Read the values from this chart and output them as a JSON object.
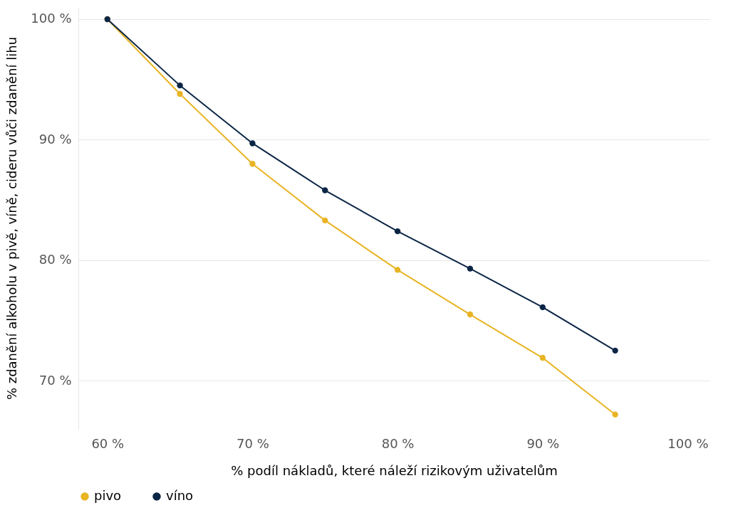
{
  "chart_data": {
    "type": "line",
    "xlabel": "% podíl nákladů, které náleží rizikovým uživatelům",
    "ylabel": "% zdanění alkoholu v pivě, víně, cideru vůči zdanění lihu",
    "x": [
      60,
      65,
      70,
      75,
      80,
      85,
      90,
      95
    ],
    "series": [
      {
        "name": "pivo",
        "color": "#e8b424",
        "values": [
          100,
          93.8,
          88.0,
          83.3,
          79.2,
          75.5,
          71.9,
          67.2
        ]
      },
      {
        "name": "víno",
        "color": "#0b2545",
        "values": [
          100,
          94.5,
          89.7,
          85.8,
          82.4,
          79.3,
          76.1,
          72.5
        ]
      }
    ],
    "xlim": [
      58,
      101.5
    ],
    "ylim": [
      66,
      101
    ],
    "xticks": [
      {
        "value": 60,
        "label": "60 %"
      },
      {
        "value": 70,
        "label": "70 %"
      },
      {
        "value": 80,
        "label": "80 %"
      },
      {
        "value": 90,
        "label": "90 %"
      },
      {
        "value": 100,
        "label": "100 %"
      }
    ],
    "yticks": [
      {
        "value": 70,
        "label": "70 %"
      },
      {
        "value": 80,
        "label": "80 %"
      },
      {
        "value": 90,
        "label": "90 %"
      },
      {
        "value": 100,
        "label": "100 %"
      }
    ],
    "grid": "y",
    "legend": "bottom",
    "marker": "circle",
    "line_style": "solid"
  }
}
